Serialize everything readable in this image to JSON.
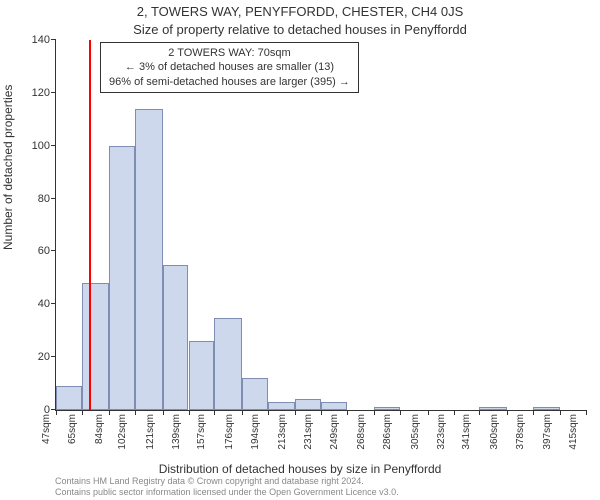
{
  "header": {
    "address": "2, TOWERS WAY, PENYFFORDD, CHESTER, CH4 0JS",
    "subtitle": "Size of property relative to detached houses in Penyffordd"
  },
  "legend": {
    "line1": "2 TOWERS WAY: 70sqm",
    "line2": "← 3% of detached houses are smaller (13)",
    "line3": "96% of semi-detached houses are larger (395) →"
  },
  "axes": {
    "ylabel": "Number of detached properties",
    "xlabel": "Distribution of detached houses by size in Penyffordd",
    "ymax": 140,
    "ytick_step": 20,
    "yticks": [
      0,
      20,
      40,
      60,
      80,
      100,
      120,
      140
    ]
  },
  "chart": {
    "type": "histogram",
    "bar_fill": "#cdd8ec",
    "bar_border": "#7f8db3",
    "marker_color": "#ff0000",
    "marker_x_sqm": 70,
    "xticks": [
      47,
      65,
      84,
      102,
      121,
      139,
      157,
      176,
      194,
      213,
      231,
      249,
      268,
      286,
      305,
      323,
      341,
      360,
      378,
      397,
      415
    ],
    "bars": [
      9,
      48,
      100,
      114,
      55,
      26,
      35,
      12,
      3,
      4,
      3,
      0,
      1,
      0,
      0,
      0,
      1,
      0,
      1,
      0
    ]
  },
  "credits": {
    "line1": "Contains HM Land Registry data © Crown copyright and database right 2024.",
    "line2": "Contains public sector information licensed under the Open Government Licence v3.0."
  }
}
